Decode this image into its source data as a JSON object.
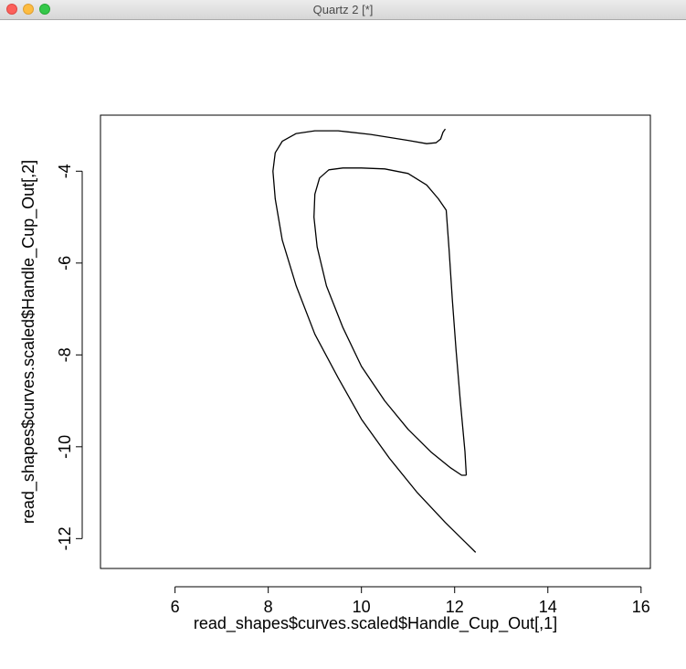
{
  "window": {
    "title": "Quartz 2 [*]"
  },
  "controls": {
    "close_icon": "close-icon",
    "minimize_icon": "minimize-icon",
    "zoom_icon": "zoom-icon"
  },
  "chart_data": {
    "type": "line",
    "title": "",
    "xlabel": "read_shapes$curves.scaled$Handle_Cup_Out[,1]",
    "ylabel": "read_shapes$curves.scaled$Handle_Cup_Out[,2]",
    "xlim": [
      4.4,
      16.2
    ],
    "ylim": [
      -12.65,
      -2.78
    ],
    "xticks": [
      6,
      8,
      10,
      12,
      14,
      16
    ],
    "yticks": [
      -4,
      -6,
      -8,
      -10,
      -12
    ],
    "grid": false,
    "line_color": "#000000",
    "series": [
      {
        "x": [
          12.45,
          12.2,
          11.8,
          11.2,
          10.6,
          10.0,
          9.5,
          9.0,
          8.6,
          8.3,
          8.15,
          8.1,
          8.15,
          8.3,
          8.6,
          9.0,
          9.5,
          10.2,
          11.0,
          11.4,
          11.6,
          11.7,
          11.75,
          11.8
        ],
        "y": [
          -12.3,
          -12.05,
          -11.65,
          -11.0,
          -10.25,
          -9.4,
          -8.5,
          -7.55,
          -6.5,
          -5.5,
          -4.6,
          -4.0,
          -3.6,
          -3.35,
          -3.18,
          -3.12,
          -3.12,
          -3.2,
          -3.33,
          -3.4,
          -3.38,
          -3.3,
          -3.15,
          -3.08
        ]
      },
      {
        "x": [
          12.25,
          12.15,
          11.9,
          11.5,
          11.0,
          10.5,
          10.0,
          9.6,
          9.25,
          9.05,
          8.98,
          9.0,
          9.1,
          9.3,
          9.6,
          10.0,
          10.5,
          11.0,
          11.4,
          11.65,
          11.82,
          11.88,
          11.95,
          12.03,
          12.12,
          12.22,
          12.25
        ],
        "y": [
          -10.62,
          -10.62,
          -10.45,
          -10.12,
          -9.62,
          -9.0,
          -8.25,
          -7.4,
          -6.5,
          -5.65,
          -5.0,
          -4.5,
          -4.15,
          -3.97,
          -3.93,
          -3.93,
          -3.95,
          -4.05,
          -4.3,
          -4.6,
          -4.85,
          -5.7,
          -6.8,
          -7.9,
          -9.0,
          -10.1,
          -10.62
        ]
      }
    ]
  }
}
